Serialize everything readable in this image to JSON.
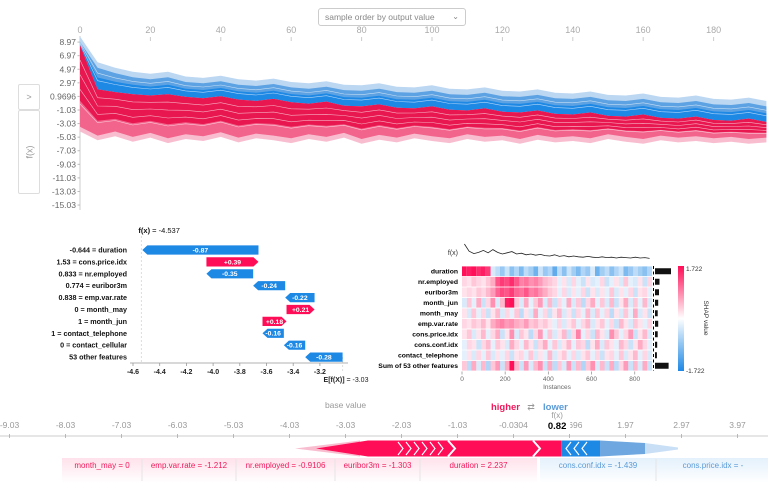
{
  "colors": {
    "red": "#ff0d57",
    "blue": "#1e88e5",
    "core_red": "#e8174f",
    "mid_red": "#f2648c",
    "light_red": "#f9bdd0",
    "core_blue": "#1e88e5",
    "mid_blue": "#5da2e2",
    "light_blue": "#bcd7f2",
    "label_red": "#f0195c",
    "label_blue": "#5a9bd8",
    "axis_grey": "#999999"
  },
  "top_plot": {
    "dropdown_label": "sample order by output value",
    "dropdown_chevron": "⌄",
    "expander_label": ">",
    "fx_toggle_label": "f(x)"
  },
  "chart_data": [
    {
      "id": "decision_stack",
      "type": "area",
      "x_ticks": [
        0,
        20,
        40,
        60,
        80,
        100,
        120,
        140,
        160,
        180
      ],
      "y_ticks": [
        "8.97",
        "6.97",
        "4.97",
        "2.97",
        "0.9696",
        "-1.03",
        "-3.03",
        "-5.03",
        "-7.03",
        "-9.03",
        "-11.03",
        "-13.03",
        "-15.03"
      ],
      "x": [
        0,
        5,
        10,
        15,
        20,
        25,
        30,
        35,
        40,
        45,
        50,
        55,
        60,
        65,
        70,
        75,
        80,
        85,
        90,
        95,
        100,
        105,
        110,
        115,
        120,
        125,
        130,
        135,
        140,
        145,
        150,
        155,
        160,
        165,
        170,
        175,
        180,
        185,
        190,
        195
      ],
      "blue_top": [
        9.0,
        5.2,
        4.4,
        3.8,
        3.5,
        3.8,
        3.1,
        2.9,
        3.2,
        2.7,
        2.5,
        2.8,
        2.3,
        2.1,
        2.4,
        1.9,
        1.8,
        2.1,
        1.6,
        1.5,
        1.8,
        1.3,
        1.2,
        1.5,
        1.0,
        0.9,
        1.2,
        0.7,
        0.6,
        0.9,
        0.4,
        0.3,
        0.6,
        0.1,
        0.0,
        0.3,
        -0.2,
        -0.3,
        0.0,
        -0.5
      ],
      "boundary": [
        8.5,
        2.0,
        1.6,
        1.3,
        1.1,
        1.3,
        0.9,
        0.7,
        1.0,
        0.5,
        0.3,
        0.6,
        0.1,
        -0.1,
        0.2,
        -0.4,
        -0.5,
        -0.2,
        -0.7,
        -0.8,
        -0.5,
        -1.0,
        -1.1,
        -0.8,
        -1.3,
        -1.4,
        -1.1,
        -1.6,
        -1.7,
        -1.4,
        -1.9,
        -2.0,
        -1.7,
        -2.2,
        -2.3,
        -2.0,
        -2.5,
        -2.6,
        -2.3,
        -2.8
      ],
      "red_bottom": [
        -3.5,
        -4.8,
        -4.2,
        -5.0,
        -4.4,
        -5.2,
        -4.6,
        -4.9,
        -4.3,
        -5.1,
        -4.5,
        -4.8,
        -5.2,
        -4.6,
        -5.0,
        -4.4,
        -5.3,
        -4.7,
        -5.1,
        -4.5,
        -4.9,
        -5.2,
        -4.6,
        -5.0,
        -4.8,
        -5.3,
        -4.7,
        -5.1,
        -4.9,
        -5.2,
        -4.6,
        -5.0,
        -5.3,
        -4.8,
        -5.1,
        -4.9,
        -5.2,
        -5.0,
        -5.3,
        -5.1
      ]
    },
    {
      "id": "waterfall",
      "type": "bar",
      "fx_bold": "f(x)",
      "fx_rest": " = -4.537",
      "fx": -4.537,
      "base_bold": "E[f(X)]",
      "base_rest": " = -3.03",
      "base": -3.03,
      "x_tick_labels": [
        "-4.6",
        "-4.4",
        "-4.2",
        "-4.0",
        "-3.8",
        "-3.6",
        "-3.4",
        "-3.2"
      ],
      "rows": [
        {
          "label": "-0.644 = duration",
          "contribution": -0.87,
          "display": "-0.87"
        },
        {
          "label": "1.53 = cons.price.idx",
          "contribution": 0.39,
          "display": "+0.39"
        },
        {
          "label": "0.833 = nr.employed",
          "contribution": -0.35,
          "display": "-0.35"
        },
        {
          "label": "0.774 = euribor3m",
          "contribution": -0.24,
          "display": "-0.24"
        },
        {
          "label": "0.838 = emp.var.rate",
          "contribution": -0.22,
          "display": "-0.22"
        },
        {
          "label": "0 = month_may",
          "contribution": 0.21,
          "display": "+0.21"
        },
        {
          "label": "1 = month_jun",
          "contribution": 0.18,
          "display": "+0.18"
        },
        {
          "label": "1 = contact_telephone",
          "contribution": -0.16,
          "display": "-0.16"
        },
        {
          "label": "0 = contact_cellular",
          "contribution": -0.16,
          "display": "-0.16"
        },
        {
          "label": "53 other features",
          "contribution": -0.28,
          "display": "-0.28"
        }
      ]
    },
    {
      "id": "heatmap",
      "type": "heatmap",
      "fx_label": "f(x)",
      "x_label": "Instances",
      "x_ticks": [
        0,
        200,
        400,
        600,
        800
      ],
      "colorbar": {
        "max": "1.722",
        "min": "-1.722",
        "label": "SHAP value"
      },
      "row_labels": [
        "duration",
        "nr.employed",
        "euribor3m",
        "month_jun",
        "month_may",
        "emp.var.rate",
        "cons.price.idx",
        "cons.conf.idx",
        "contact_telephone",
        "Sum of 53 other features"
      ],
      "bars": [
        1.0,
        0.28,
        0.25,
        0.2,
        0.17,
        0.2,
        0.17,
        0.14,
        0.12,
        0.85
      ],
      "fx_line": [
        3.0,
        1.2,
        0.6,
        0.9,
        1.4,
        0.8,
        1.6,
        0.9,
        0.5,
        0.8,
        1.1,
        0.5,
        0.7,
        0.3,
        0.5,
        0.2,
        0.4,
        0.1,
        0.0,
        0.3,
        -0.1,
        0.1,
        -0.2,
        0.0,
        -0.2,
        -0.3,
        -0.1,
        -0.3,
        -0.4,
        -0.2,
        -0.4,
        -0.3,
        -0.5,
        -0.3,
        -0.4,
        -0.5,
        -0.3,
        -0.5,
        -0.4,
        -0.6
      ],
      "values": [
        [
          1.7,
          1.6,
          1.7,
          1.5,
          1.6,
          1.4,
          -0.3,
          -0.5,
          -0.8,
          -0.4,
          -0.9,
          -0.6,
          -1.0,
          -0.5,
          -0.7,
          -1.1,
          -0.4,
          -0.8,
          -0.6,
          -1.2,
          -0.5,
          -0.9,
          -0.4,
          -0.7,
          -1.0,
          -0.6,
          -0.8,
          -0.3,
          -1.1,
          -0.7,
          -0.5,
          -0.9,
          -0.6,
          -0.4,
          -1.0,
          -0.8,
          -0.5,
          -0.7,
          -0.9,
          -0.6
        ],
        [
          0.3,
          0.2,
          0.4,
          0.3,
          0.2,
          0.4,
          0.6,
          1.2,
          1.4,
          1.3,
          1.5,
          1.2,
          0.9,
          1.0,
          0.8,
          0.9,
          0.7,
          0.5,
          0.4,
          0.3,
          -0.2,
          0.2,
          -0.3,
          0.3,
          -0.2,
          -0.4,
          0.2,
          -0.3,
          -0.2,
          0.3,
          -0.4,
          -0.2,
          0.2,
          -0.3,
          0.4,
          -0.2,
          -0.3,
          0.2,
          -0.4,
          0.3
        ],
        [
          0.2,
          0.3,
          0.2,
          0.4,
          0.3,
          0.5,
          0.7,
          1.1,
          1.3,
          1.2,
          1.4,
          1.1,
          1.0,
          1.2,
          0.9,
          1.0,
          0.8,
          0.6,
          0.4,
          0.3,
          -0.2,
          0.3,
          -0.3,
          0.2,
          -0.2,
          0.3,
          -0.4,
          0.2,
          -0.3,
          0.2,
          -0.2,
          0.4,
          -0.3,
          0.2,
          -0.2,
          0.3,
          -0.4,
          0.2,
          0.3,
          -0.2
        ],
        [
          -0.3,
          0.4,
          -0.2,
          0.6,
          -0.4,
          0.3,
          0.8,
          -0.3,
          0.5,
          1.6,
          1.7,
          0.4,
          -0.3,
          0.6,
          -0.2,
          0.4,
          0.7,
          -0.3,
          0.5,
          -0.4,
          0.3,
          -0.2,
          0.6,
          -0.3,
          0.4,
          -0.5,
          0.3,
          0.6,
          -0.2,
          0.4,
          -0.3,
          0.5,
          -0.4,
          0.2,
          0.6,
          -0.3,
          0.4,
          -0.2,
          0.5,
          -0.3
        ],
        [
          0.2,
          -0.3,
          0.4,
          -0.2,
          0.3,
          -0.4,
          0.2,
          0.5,
          -0.3,
          0.3,
          -0.2,
          0.4,
          -0.5,
          0.2,
          -0.3,
          0.6,
          -0.2,
          0.3,
          -0.4,
          0.2,
          0.5,
          -0.3,
          0.2,
          -0.4,
          0.3,
          -0.2,
          0.5,
          -0.3,
          0.4,
          -0.2,
          0.3,
          -0.5,
          0.2,
          -0.3,
          0.4,
          -0.2,
          0.6,
          -0.3,
          0.2,
          -0.4
        ],
        [
          0.3,
          0.2,
          0.4,
          0.3,
          0.5,
          0.2,
          0.6,
          0.8,
          0.9,
          0.7,
          0.8,
          0.6,
          0.5,
          0.7,
          0.4,
          0.5,
          0.3,
          0.4,
          0.2,
          -0.2,
          0.3,
          -0.3,
          0.2,
          0.4,
          -0.2,
          0.3,
          0.5,
          -0.3,
          0.2,
          0.4,
          -0.2,
          0.3,
          -0.4,
          0.5,
          0.2,
          -0.3,
          0.4,
          0.2,
          -0.2,
          0.3
        ],
        [
          0.2,
          0.4,
          -0.3,
          0.2,
          0.5,
          -0.2,
          0.3,
          0.6,
          -0.4,
          0.2,
          0.8,
          -0.3,
          0.4,
          0.2,
          -0.5,
          0.3,
          0.7,
          -0.2,
          0.4,
          -0.3,
          0.2,
          0.5,
          -0.4,
          0.3,
          0.9,
          -0.2,
          0.3,
          -0.4,
          0.5,
          0.2,
          -0.3,
          0.8,
          0.4,
          -0.2,
          0.3,
          0.7,
          -0.4,
          0.2,
          0.5,
          -0.3
        ],
        [
          -0.2,
          0.3,
          0.2,
          -0.4,
          0.3,
          0.5,
          -0.2,
          0.4,
          0.2,
          -0.3,
          0.6,
          0.3,
          -0.2,
          0.5,
          0.2,
          -0.4,
          0.3,
          0.6,
          -0.2,
          0.4,
          -0.3,
          0.2,
          0.5,
          -0.2,
          0.4,
          0.3,
          -0.5,
          0.2,
          0.6,
          -0.3,
          0.4,
          0.2,
          -0.2,
          0.5,
          0.3,
          -0.4,
          0.2,
          0.6,
          0.3,
          -0.2
        ],
        [
          -0.2,
          0.2,
          -0.3,
          0.3,
          -0.2,
          0.4,
          -0.3,
          0.2,
          -0.2,
          0.3,
          -0.4,
          0.2,
          0.3,
          -0.2,
          0.4,
          -0.3,
          0.2,
          -0.2,
          0.5,
          -0.3,
          0.2,
          0.4,
          -0.2,
          0.3,
          -0.3,
          0.2,
          0.4,
          -0.2,
          0.3,
          -0.4,
          0.2,
          0.3,
          -0.2,
          0.4,
          -0.3,
          0.2,
          0.5,
          -0.2,
          0.3,
          -0.3
        ],
        [
          0.4,
          -0.5,
          0.6,
          -0.3,
          0.5,
          -0.6,
          0.4,
          0.7,
          -0.4,
          0.6,
          1.7,
          0.5,
          -0.4,
          0.7,
          -0.3,
          0.5,
          0.8,
          -0.4,
          0.6,
          -0.5,
          0.4,
          -0.3,
          0.7,
          -0.4,
          0.5,
          -0.6,
          0.4,
          0.8,
          -0.3,
          0.5,
          -0.4,
          0.6,
          -0.5,
          0.3,
          0.7,
          -0.4,
          0.5,
          -0.3,
          0.6,
          -0.4
        ]
      ],
      "value_range": [
        -1.722,
        1.722
      ]
    },
    {
      "id": "force",
      "type": "force",
      "higher_label": "higher",
      "lower_label": "lower",
      "arrows": "⇄",
      "fx_label": "f(x)",
      "fx_value": 0.82,
      "fx_value_label": "0.82",
      "base_value": -3.03,
      "base_label": "base value",
      "ticks": [
        {
          "v": -9.03,
          "label": "-9.03"
        },
        {
          "v": -8.03,
          "label": "-8.03"
        },
        {
          "v": -7.03,
          "label": "-7.03"
        },
        {
          "v": -6.03,
          "label": "-6.03"
        },
        {
          "v": -5.03,
          "label": "-5.03"
        },
        {
          "v": -4.03,
          "label": "-4.03"
        },
        {
          "v": -3.03,
          "label": "-3.03"
        },
        {
          "v": -2.03,
          "label": "-2.03"
        },
        {
          "v": -1.03,
          "label": "-1.03"
        },
        {
          "v": -0.0304,
          "label": "-0.0304"
        },
        {
          "v": 0.9696,
          "label": "0.9696"
        },
        {
          "v": 1.97,
          "label": "1.97"
        },
        {
          "v": 2.97,
          "label": "2.97"
        },
        {
          "v": 3.97,
          "label": "3.97"
        }
      ],
      "red_labels": [
        "month_may = 0",
        "emp.var.rate = -1.212",
        "nr.employed = -0.9106",
        "euribor3m = -1.303",
        "duration = 2.237"
      ],
      "blue_labels": [
        "cons.conf.idx = -1.439",
        "cons.price.idx = -"
      ]
    }
  ]
}
